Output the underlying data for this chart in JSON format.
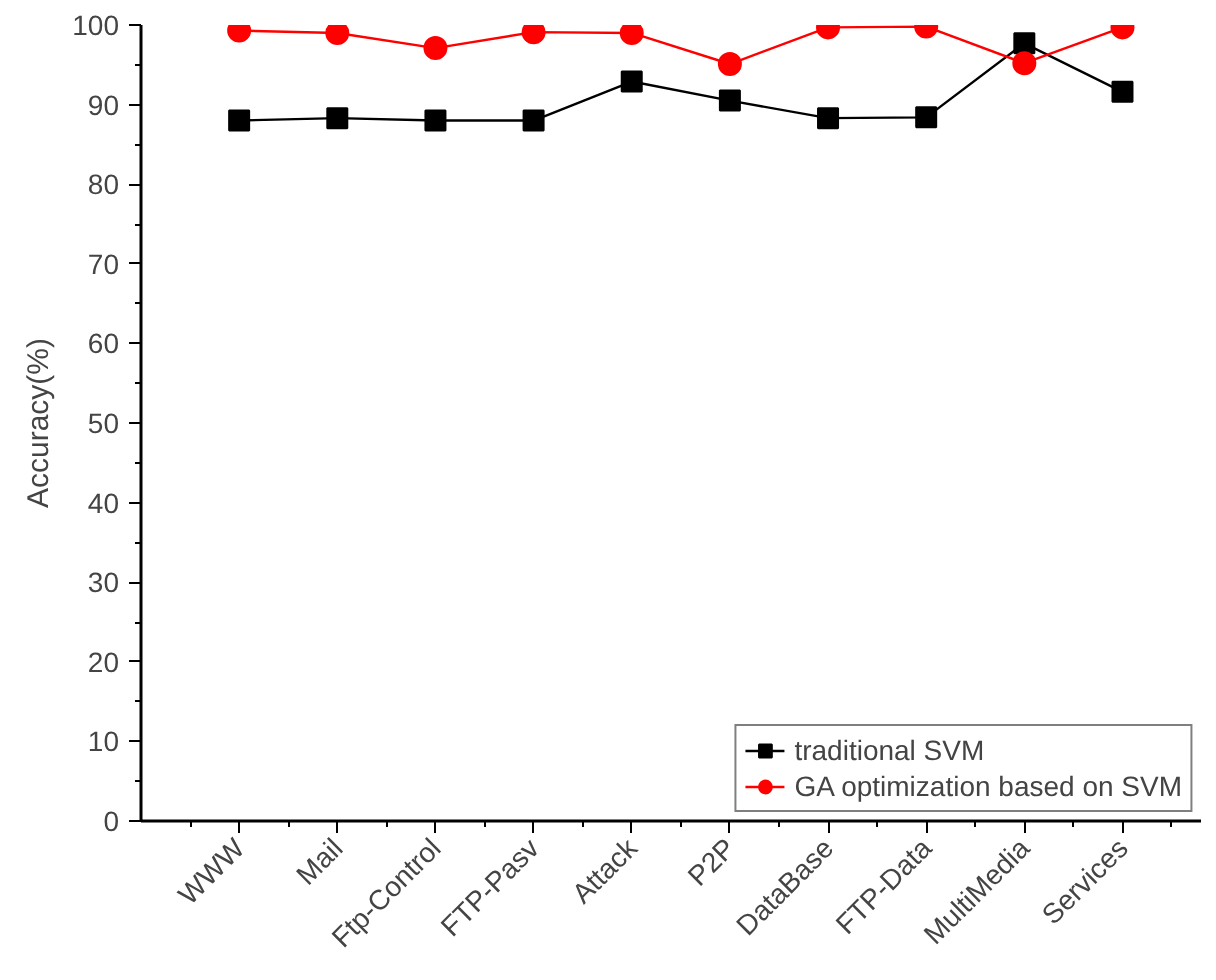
{
  "chart_data": {
    "type": "line",
    "ylabel": "Accuracy(%)",
    "categories": [
      "WWW",
      "Mail",
      "Ftp-Control",
      "FTP-Pasv",
      "Attack",
      "P2P",
      "DataBase",
      "FTP-Data",
      "MultiMedia",
      "Services"
    ],
    "series": [
      {
        "name": "traditional SVM",
        "color": "#000000",
        "marker": "square",
        "values": [
          88.0,
          88.3,
          88.0,
          88.0,
          92.9,
          90.5,
          88.3,
          88.4,
          97.7,
          91.6
        ]
      },
      {
        "name": "GA optimization based on SVM",
        "color": "#ff0000",
        "marker": "circle",
        "values": [
          99.3,
          99.0,
          97.1,
          99.1,
          99.0,
          95.1,
          99.7,
          99.8,
          95.2,
          99.7
        ]
      }
    ],
    "ylim": [
      0,
      100
    ],
    "yticks": [
      0,
      10,
      20,
      30,
      40,
      50,
      60,
      70,
      80,
      90,
      100
    ],
    "grid": false,
    "legend": "bottom right"
  }
}
